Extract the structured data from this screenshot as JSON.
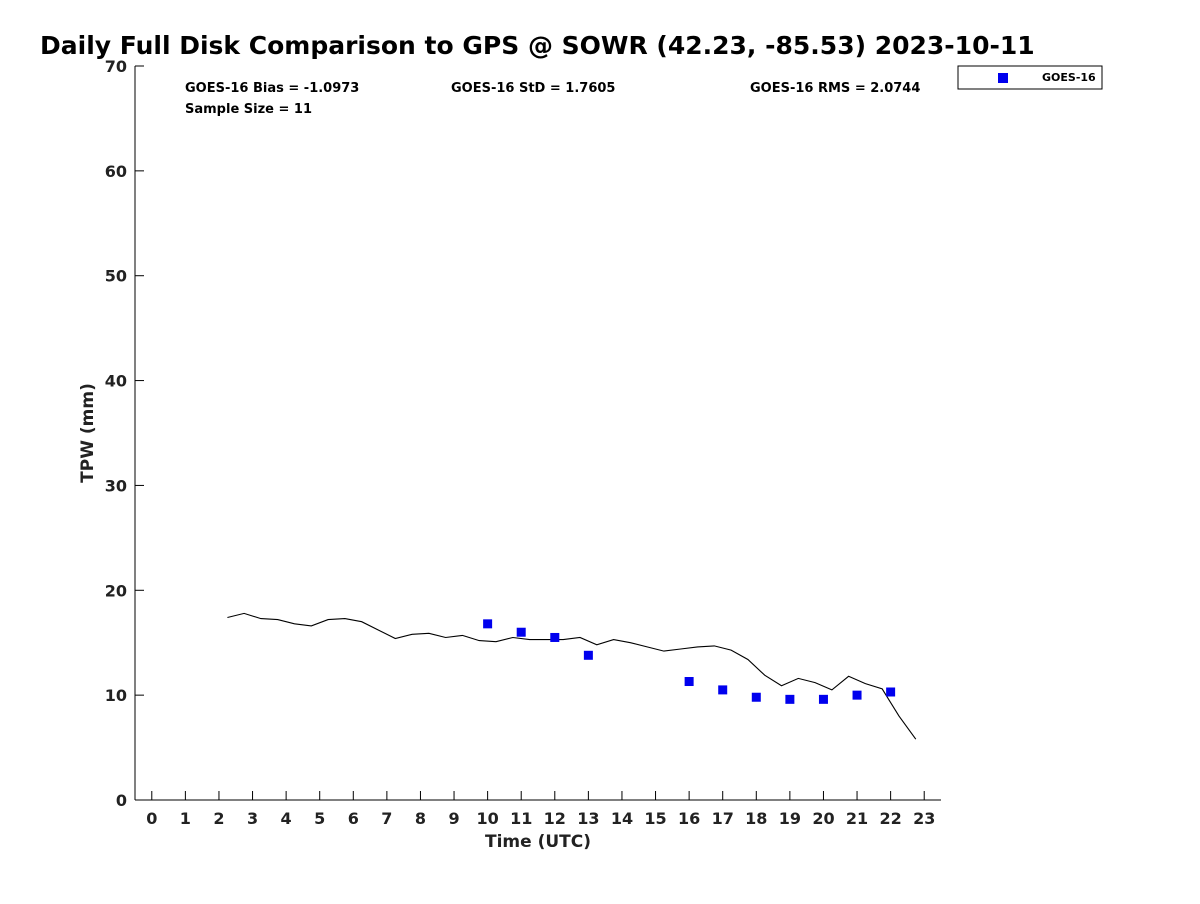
{
  "chart_data": {
    "type": "scatter",
    "title": "Daily Full Disk Comparison to GPS @ SOWR (42.23, -85.53) 2023-10-11",
    "xlabel": "Time (UTC)",
    "ylabel": "TPW (mm)",
    "xlim": [
      -0.5,
      23.5
    ],
    "ylim": [
      0,
      70
    ],
    "xticks": [
      0,
      1,
      2,
      3,
      4,
      5,
      6,
      7,
      8,
      9,
      10,
      11,
      12,
      13,
      14,
      15,
      16,
      17,
      18,
      19,
      20,
      21,
      22,
      23
    ],
    "yticks": [
      0,
      10,
      20,
      30,
      40,
      50,
      60,
      70
    ],
    "grid": false,
    "legend_position": "top-right, outside plot",
    "stats": {
      "bias": "GOES-16 Bias = -1.0973",
      "std": "GOES-16 StD = 1.7605",
      "rms": "GOES-16 RMS = 2.0744",
      "sample": "Sample Size = 11"
    },
    "gps_line": {
      "color": "#000000",
      "x": [
        2.25,
        2.75,
        3.25,
        3.75,
        4.25,
        4.75,
        5.25,
        5.75,
        6.25,
        6.75,
        7.25,
        7.75,
        8.25,
        8.75,
        9.25,
        9.75,
        10.25,
        10.75,
        11.25,
        11.75,
        12.25,
        12.75,
        13.25,
        13.75,
        14.25,
        14.75,
        15.25,
        15.75,
        16.25,
        16.75,
        17.25,
        17.75,
        18.25,
        18.75,
        19.25,
        19.75,
        20.25,
        20.75,
        21.25,
        21.75,
        22.25,
        22.75
      ],
      "y": [
        17.4,
        17.8,
        17.3,
        17.2,
        16.8,
        16.6,
        17.2,
        17.3,
        17.0,
        16.2,
        15.4,
        15.8,
        15.9,
        15.5,
        15.7,
        15.2,
        15.1,
        15.5,
        15.3,
        15.3,
        15.3,
        15.5,
        14.8,
        15.3,
        15.0,
        14.6,
        14.2,
        14.4,
        14.6,
        14.7,
        14.3,
        13.4,
        11.9,
        10.9,
        11.6,
        11.2,
        10.5,
        11.8,
        11.1,
        10.6,
        8.0,
        5.8
      ]
    },
    "series": [
      {
        "name": "GOES-16",
        "color": "#0000ee",
        "marker": "square",
        "x": [
          10,
          11,
          12,
          13,
          16,
          17,
          18,
          19,
          20,
          21,
          22
        ],
        "y": [
          16.8,
          16.0,
          15.5,
          13.8,
          11.3,
          10.5,
          9.8,
          9.6,
          9.6,
          10.0,
          10.3
        ]
      }
    ]
  }
}
